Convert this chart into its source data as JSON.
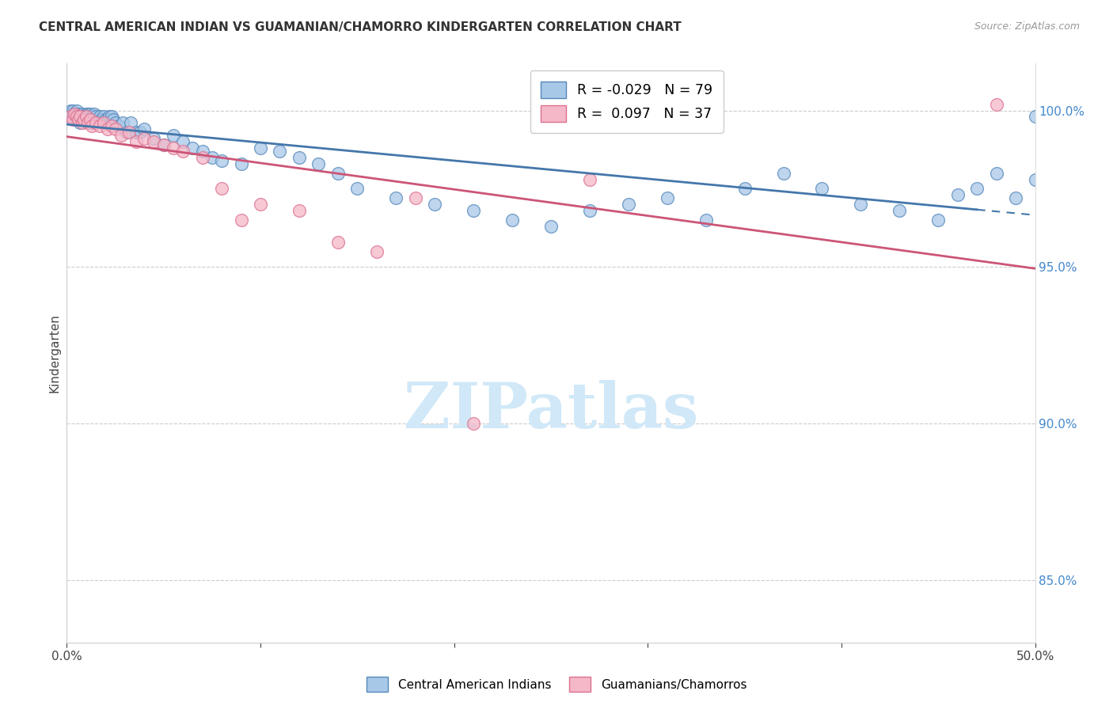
{
  "title": "CENTRAL AMERICAN INDIAN VS GUAMANIAN/CHAMORRO KINDERGARTEN CORRELATION CHART",
  "source": "Source: ZipAtlas.com",
  "ylabel": "Kindergarten",
  "xlim": [
    0.0,
    50.0
  ],
  "ylim": [
    83.0,
    101.5
  ],
  "y_ticks_right": [
    85.0,
    90.0,
    95.0,
    100.0
  ],
  "y_tick_labels_right": [
    "85.0%",
    "90.0%",
    "95.0%",
    "100.0%"
  ],
  "blue_R": -0.029,
  "blue_N": 79,
  "pink_R": 0.097,
  "pink_N": 37,
  "blue_color": "#a8c8e8",
  "pink_color": "#f4b8c8",
  "blue_edge_color": "#5588bb",
  "pink_edge_color": "#dd7090",
  "blue_line_color": "#4477aa",
  "pink_line_color": "#cc5577",
  "legend_label_blue": "Central American Indians",
  "legend_label_pink": "Guamanians/Chamorros",
  "blue_x": [
    0.1,
    0.2,
    0.2,
    0.3,
    0.3,
    0.4,
    0.4,
    0.5,
    0.5,
    0.6,
    0.6,
    0.7,
    0.7,
    0.8,
    0.8,
    0.9,
    1.0,
    1.0,
    1.1,
    1.1,
    1.2,
    1.2,
    1.3,
    1.3,
    1.4,
    1.5,
    1.6,
    1.7,
    1.8,
    1.9,
    2.0,
    2.1,
    2.2,
    2.3,
    2.4,
    2.5,
    2.7,
    2.9,
    3.1,
    3.3,
    3.6,
    3.8,
    4.0,
    4.5,
    5.0,
    5.5,
    6.0,
    6.5,
    7.0,
    7.5,
    8.0,
    9.0,
    10.0,
    11.0,
    12.0,
    13.0,
    14.0,
    15.0,
    17.0,
    19.0,
    21.0,
    23.0,
    25.0,
    27.0,
    29.0,
    31.0,
    33.0,
    35.0,
    37.0,
    39.0,
    41.0,
    43.0,
    45.0,
    46.0,
    47.0,
    48.0,
    49.0,
    50.0,
    50.0
  ],
  "blue_y": [
    99.9,
    99.8,
    100.0,
    99.9,
    100.0,
    99.8,
    99.9,
    100.0,
    99.8,
    99.9,
    99.7,
    99.8,
    99.6,
    99.9,
    99.7,
    99.8,
    99.9,
    99.7,
    99.9,
    99.8,
    99.9,
    99.7,
    99.8,
    99.6,
    99.9,
    99.8,
    99.7,
    99.8,
    99.7,
    99.8,
    99.7,
    99.7,
    99.8,
    99.8,
    99.7,
    99.6,
    99.5,
    99.6,
    99.3,
    99.6,
    99.3,
    99.3,
    99.4,
    99.1,
    98.9,
    99.2,
    99.0,
    98.8,
    98.7,
    98.5,
    98.4,
    98.3,
    98.8,
    98.7,
    98.5,
    98.3,
    98.0,
    97.5,
    97.2,
    97.0,
    96.8,
    96.5,
    96.3,
    96.8,
    97.0,
    97.2,
    96.5,
    97.5,
    98.0,
    97.5,
    97.0,
    96.8,
    96.5,
    97.3,
    97.5,
    98.0,
    97.2,
    97.8,
    99.8
  ],
  "pink_x": [
    0.2,
    0.3,
    0.4,
    0.5,
    0.6,
    0.7,
    0.8,
    0.9,
    1.0,
    1.1,
    1.2,
    1.3,
    1.5,
    1.7,
    1.9,
    2.1,
    2.3,
    2.5,
    2.8,
    3.2,
    3.6,
    4.0,
    4.5,
    5.0,
    5.5,
    6.0,
    7.0,
    8.0,
    9.0,
    10.0,
    12.0,
    14.0,
    16.0,
    18.0,
    21.0,
    27.0,
    48.0
  ],
  "pink_y": [
    99.8,
    99.7,
    99.9,
    99.8,
    99.7,
    99.8,
    99.6,
    99.7,
    99.8,
    99.6,
    99.7,
    99.5,
    99.6,
    99.5,
    99.6,
    99.4,
    99.5,
    99.4,
    99.2,
    99.3,
    99.0,
    99.1,
    99.0,
    98.9,
    98.8,
    98.7,
    98.5,
    97.5,
    96.5,
    97.0,
    96.8,
    95.8,
    95.5,
    97.2,
    90.0,
    97.8,
    100.2
  ],
  "watermark_text": "ZIPatlas",
  "watermark_color": "#d0e8f8",
  "background_color": "#ffffff",
  "grid_color": "#cccccc"
}
